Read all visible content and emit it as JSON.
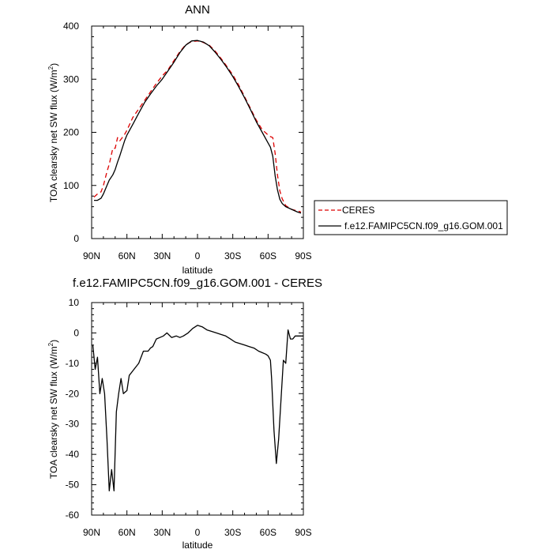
{
  "chart_data": [
    {
      "type": "line",
      "title": "ANN",
      "xlabel": "latitude",
      "ylabel": "TOA clearsky net SW flux (W/m",
      "ylabel_sup": "2",
      "ylabel_end": ")",
      "xlim": [
        90,
        -90
      ],
      "ylim": [
        0,
        400
      ],
      "x_ticks": [
        {
          "value": 90,
          "label": "90N"
        },
        {
          "value": 60,
          "label": "60N"
        },
        {
          "value": 30,
          "label": "30N"
        },
        {
          "value": 0,
          "label": "0"
        },
        {
          "value": -30,
          "label": "30S"
        },
        {
          "value": -60,
          "label": "60S"
        },
        {
          "value": -90,
          "label": "90S"
        }
      ],
      "y_ticks": [
        {
          "value": 0,
          "label": "0"
        },
        {
          "value": 100,
          "label": "100"
        },
        {
          "value": 200,
          "label": "200"
        },
        {
          "value": 300,
          "label": "300"
        },
        {
          "value": 400,
          "label": "400"
        }
      ],
      "legend": {
        "position": "right",
        "entries": [
          "CERES",
          "f.e12.FAMIPC5CN.f09_g16.GOM.001"
        ]
      },
      "series": [
        {
          "name": "CERES",
          "color": "#dd0000",
          "dash": true,
          "x": [
            88,
            85,
            82,
            80,
            77,
            75,
            72,
            70,
            68,
            66,
            64,
            62,
            60,
            55,
            50,
            45,
            40,
            35,
            30,
            25,
            20,
            15,
            10,
            5,
            0,
            -5,
            -10,
            -15,
            -20,
            -25,
            -30,
            -35,
            -40,
            -45,
            -50,
            -55,
            -60,
            -62,
            -64,
            -66,
            -68,
            -70,
            -72,
            -75,
            -80,
            -85,
            -88
          ],
          "y": [
            78,
            84,
            88,
            100,
            126,
            140,
            170,
            170,
            190,
            184,
            190,
            196,
            204,
            228,
            244,
            260,
            276,
            292,
            306,
            318,
            335,
            352,
            365,
            371,
            372,
            369,
            364,
            353,
            339,
            324,
            308,
            289,
            267,
            245,
            223,
            205,
            195,
            192,
            190,
            160,
            120,
            90,
            75,
            62,
            55,
            52,
            50
          ]
        },
        {
          "name": "f.e12.FAMIPC5CN.f09_g16.GOM.001",
          "color": "#000000",
          "dash": false,
          "x": [
            88,
            85,
            82,
            80,
            77,
            75,
            72,
            70,
            68,
            66,
            64,
            62,
            60,
            55,
            50,
            45,
            40,
            35,
            30,
            25,
            20,
            15,
            10,
            5,
            0,
            -5,
            -10,
            -15,
            -20,
            -25,
            -30,
            -35,
            -40,
            -45,
            -50,
            -55,
            -60,
            -62,
            -64,
            -66,
            -68,
            -70,
            -72,
            -75,
            -80,
            -85,
            -88
          ],
          "y": [
            72,
            72,
            76,
            84,
            100,
            110,
            120,
            130,
            144,
            156,
            170,
            184,
            195,
            215,
            236,
            256,
            272,
            287,
            300,
            316,
            332,
            350,
            364,
            372,
            373,
            370,
            363,
            351,
            337,
            322,
            305,
            286,
            265,
            243,
            220,
            200,
            180,
            172,
            155,
            118,
            92,
            74,
            66,
            60,
            55,
            50,
            48
          ]
        }
      ]
    },
    {
      "type": "line",
      "title": "f.e12.FAMIPC5CN.f09_g16.GOM.001 - CERES",
      "xlabel": "latitude",
      "ylabel": "TOA clearsky net SW flux (W/m",
      "ylabel_sup": "2",
      "ylabel_end": ")",
      "xlim": [
        90,
        -90
      ],
      "ylim": [
        -60,
        10
      ],
      "x_ticks": [
        {
          "value": 90,
          "label": "90N"
        },
        {
          "value": 60,
          "label": "60N"
        },
        {
          "value": 30,
          "label": "30N"
        },
        {
          "value": 0,
          "label": "0"
        },
        {
          "value": -30,
          "label": "30S"
        },
        {
          "value": -60,
          "label": "60S"
        },
        {
          "value": -90,
          "label": "90S"
        }
      ],
      "y_ticks": [
        {
          "value": -60,
          "label": "-60"
        },
        {
          "value": -50,
          "label": "-50"
        },
        {
          "value": -40,
          "label": "-40"
        },
        {
          "value": -30,
          "label": "-30"
        },
        {
          "value": -20,
          "label": "-20"
        },
        {
          "value": -10,
          "label": "-10"
        },
        {
          "value": 0,
          "label": "0"
        },
        {
          "value": 10,
          "label": "10"
        }
      ],
      "series": [
        {
          "name": "",
          "color": "#000000",
          "dash": false,
          "x": [
            89,
            87,
            85,
            83,
            81,
            79,
            77,
            75,
            73,
            71,
            69,
            67,
            65,
            63,
            60,
            58,
            56,
            54,
            50,
            46,
            42,
            40,
            38,
            35,
            32,
            29,
            26,
            22,
            18,
            15,
            12,
            8,
            4,
            0,
            -4,
            -8,
            -12,
            -16,
            -20,
            -24,
            -28,
            -32,
            -36,
            -40,
            -44,
            -48,
            -52,
            -55,
            -58,
            -60,
            -62,
            -63,
            -65,
            -67,
            -69,
            -71,
            -73,
            -75,
            -77,
            -79,
            -81,
            -83,
            -85,
            -88,
            -90
          ],
          "y": [
            -4,
            -12,
            -8,
            -20,
            -15,
            -20,
            -35,
            -52,
            -45,
            -52,
            -26,
            -20,
            -15,
            -20,
            -19,
            -14,
            -13,
            -12,
            -10,
            -6,
            -6,
            -5,
            -4.5,
            -2,
            -1.5,
            -1,
            0,
            -1.5,
            -1,
            -1.5,
            -1,
            0,
            1.5,
            2.5,
            2,
            1,
            0.5,
            0,
            -0.5,
            -1,
            -2,
            -3,
            -3.5,
            -4,
            -4.5,
            -5,
            -6,
            -6.5,
            -7,
            -7.5,
            -9,
            -15,
            -32,
            -43,
            -35,
            -22,
            -9,
            -10,
            1,
            -2,
            -2,
            -1,
            -1,
            -1,
            -1
          ]
        }
      ]
    }
  ]
}
